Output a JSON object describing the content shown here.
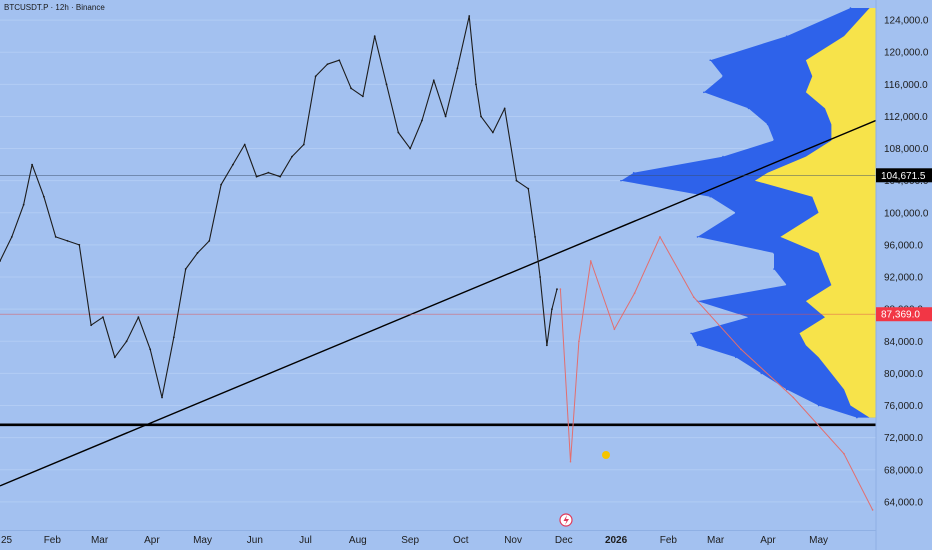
{
  "header": {
    "title": "BTCUSDT.P · 12h · Binance"
  },
  "chart_data": {
    "type": "line",
    "title": "BTCUSDT.P · 12h · Binance",
    "y_axis": {
      "range": [
        60500,
        126500
      ],
      "ticks": [
        124000,
        120000,
        116000,
        112000,
        108000,
        104000,
        100000,
        96000,
        92000,
        88000,
        84000,
        80000,
        76000,
        72000,
        68000,
        64000
      ],
      "tick_labels": [
        "124,000.0",
        "120,000.0",
        "116,000.0",
        "112,000.0",
        "108,000.0",
        "104,000.0",
        "100,000.0",
        "96,000.0",
        "92,000.0",
        "88,000.0",
        "84,000.0",
        "80,000.0",
        "76,000.0",
        "72,000.0",
        "68,000.0",
        "64,000.0"
      ]
    },
    "x_axis": {
      "labels": [
        "25",
        "Feb",
        "Mar",
        "Apr",
        "May",
        "Jun",
        "Jul",
        "Aug",
        "Sep",
        "Oct",
        "Nov",
        "Dec",
        "2026",
        "Feb",
        "Mar",
        "Apr",
        "May"
      ],
      "bold_labels": [
        "2026"
      ],
      "range": [
        "2025-01-01",
        "2026-06-04"
      ]
    },
    "series": [
      {
        "role": "price",
        "color": "#1c1c1c",
        "x": [
          "2025-01-01",
          "2025-01-08",
          "2025-01-15",
          "2025-01-20",
          "2025-01-27",
          "2025-02-03",
          "2025-02-10",
          "2025-02-17",
          "2025-02-24",
          "2025-03-03",
          "2025-03-10",
          "2025-03-17",
          "2025-03-24",
          "2025-03-31",
          "2025-04-07",
          "2025-04-14",
          "2025-04-21",
          "2025-04-28",
          "2025-05-05",
          "2025-05-12",
          "2025-05-19",
          "2025-05-26",
          "2025-06-02",
          "2025-06-09",
          "2025-06-16",
          "2025-06-23",
          "2025-06-30",
          "2025-07-07",
          "2025-07-14",
          "2025-07-21",
          "2025-07-28",
          "2025-08-04",
          "2025-08-11",
          "2025-08-18",
          "2025-08-25",
          "2025-09-01",
          "2025-09-08",
          "2025-09-15",
          "2025-09-22",
          "2025-09-29",
          "2025-10-06",
          "2025-10-10",
          "2025-10-13",
          "2025-10-20",
          "2025-10-27",
          "2025-11-03",
          "2025-11-10",
          "2025-11-14",
          "2025-11-17",
          "2025-11-21",
          "2025-11-24",
          "2025-11-27"
        ],
        "y": [
          94000,
          97000,
          101000,
          106000,
          102000,
          97000,
          96500,
          96000,
          86000,
          87000,
          82000,
          84000,
          87000,
          83000,
          77000,
          84500,
          93000,
          95000,
          96500,
          103500,
          106000,
          108500,
          104500,
          105000,
          104500,
          107000,
          108500,
          117000,
          118500,
          119000,
          115500,
          114500,
          122000,
          116000,
          110000,
          108000,
          111500,
          116500,
          112000,
          118000,
          124500,
          116000,
          112000,
          110000,
          113000,
          104000,
          103000,
          97000,
          92000,
          83500,
          88000,
          90500
        ]
      }
    ],
    "projection": {
      "color": "#e36e6e",
      "x": [
        "2025-11-29",
        "2025-12-05",
        "2025-12-10",
        "2025-12-17",
        "2025-12-31",
        "2026-01-12",
        "2026-01-27",
        "2026-02-16",
        "2026-03-16",
        "2026-04-16",
        "2026-05-16",
        "2026-06-02"
      ],
      "y": [
        90500,
        69000,
        84000,
        94000,
        85500,
        90000,
        97000,
        89500,
        83000,
        77000,
        70000,
        63000
      ]
    },
    "lines": [
      {
        "name": "trendline",
        "color": "#000000",
        "start": {
          "x": "2025-01-01",
          "y": 66000
        },
        "end": {
          "x": "2026-06-04",
          "y": 111500
        }
      },
      {
        "name": "support-line",
        "color": "#000000",
        "y": 73600
      },
      {
        "name": "reference-line-104671",
        "color": "#3a4d6a",
        "y": 104671.5
      },
      {
        "name": "reference-line-87369",
        "color": "#e05050",
        "y": 87369
      }
    ],
    "price_labels": [
      {
        "name": "price-label-104671",
        "value": 104671.5,
        "text": "104,671.5",
        "bg": "#000000",
        "fg": "#ffffff"
      },
      {
        "name": "price-label-87369",
        "value": 87369,
        "text": "87,369.0",
        "bg": "#f23645",
        "fg": "#ffffff"
      }
    ],
    "volume_profile": {
      "colors": {
        "outer": "#2e62ea",
        "inner": "#f7e34a"
      },
      "price_levels": [
        125500,
        122000,
        119000,
        117000,
        115000,
        113000,
        111000,
        109000,
        107000,
        105000,
        104000,
        102000,
        100000,
        97000,
        95000,
        93000,
        91000,
        89000,
        87000,
        85000,
        83500,
        82000,
        80000,
        78000,
        76000,
        74500
      ],
      "total_volume": [
        4,
        14,
        26,
        24,
        27,
        20,
        17,
        16,
        24,
        38,
        40,
        26,
        22,
        28,
        16,
        16,
        14,
        28,
        20,
        29,
        28,
        22,
        18,
        14,
        9,
        3
      ],
      "inner_volume": [
        1,
        5,
        11,
        10,
        11,
        8,
        7,
        7,
        11,
        17,
        19,
        10,
        9,
        15,
        9,
        8,
        7,
        11,
        8,
        12,
        11,
        9,
        7,
        5,
        4,
        1
      ]
    }
  }
}
